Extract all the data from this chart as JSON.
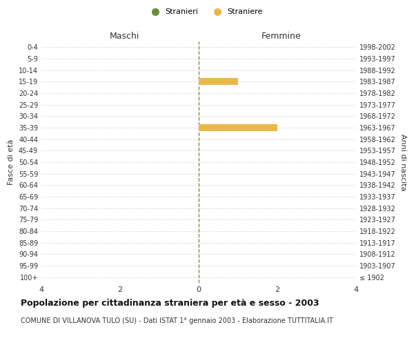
{
  "age_groups": [
    "100+",
    "95-99",
    "90-94",
    "85-89",
    "80-84",
    "75-79",
    "70-74",
    "65-69",
    "60-64",
    "55-59",
    "50-54",
    "45-49",
    "40-44",
    "35-39",
    "30-34",
    "25-29",
    "20-24",
    "15-19",
    "10-14",
    "5-9",
    "0-4"
  ],
  "birth_years": [
    "≤ 1902",
    "1903-1907",
    "1908-1912",
    "1913-1917",
    "1918-1922",
    "1923-1927",
    "1928-1932",
    "1933-1937",
    "1938-1942",
    "1943-1947",
    "1948-1952",
    "1953-1957",
    "1958-1962",
    "1963-1967",
    "1968-1972",
    "1973-1977",
    "1978-1982",
    "1983-1987",
    "1988-1992",
    "1993-1997",
    "1998-2002"
  ],
  "maschi_stranieri": [
    0,
    0,
    0,
    0,
    0,
    0,
    0,
    0,
    0,
    0,
    0,
    0,
    0,
    0,
    0,
    0,
    0,
    0,
    0,
    0,
    0
  ],
  "femmine_straniere": [
    0,
    0,
    0,
    0,
    0,
    0,
    0,
    0,
    0,
    0,
    0,
    0,
    0,
    2,
    0,
    0,
    0,
    1,
    0,
    0,
    0
  ],
  "color_maschi": "#6a8f3c",
  "color_femmine": "#e8b84b",
  "title": "Popolazione per cittadinanza straniera per età e sesso - 2003",
  "subtitle": "COMUNE DI VILLANOVA TULO (SU) - Dati ISTAT 1° gennaio 2003 - Elaborazione TUTTITALIA.IT",
  "xlabel_left": "Maschi",
  "xlabel_right": "Femmine",
  "ylabel_left": "Fasce di età",
  "ylabel_right": "Anni di nascita",
  "xlim": 4,
  "legend_stranieri": "Stranieri",
  "legend_straniere": "Straniere",
  "background_color": "#ffffff",
  "grid_color": "#cccccc"
}
